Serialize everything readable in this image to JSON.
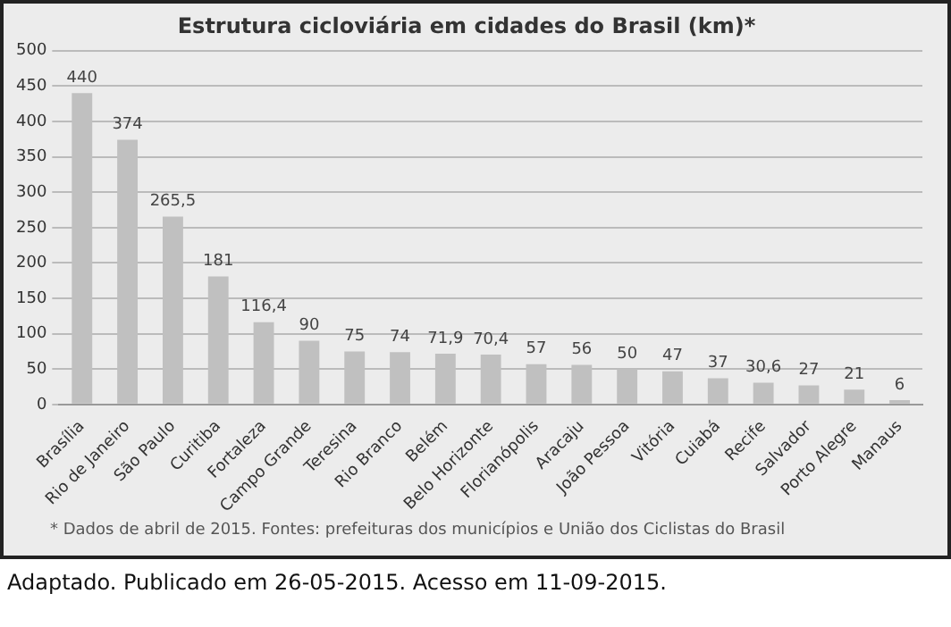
{
  "chart_data": {
    "type": "bar",
    "title": "Estrutura cicloviária em cidades do Brasil (km)*",
    "categories": [
      "Brasília",
      "Rio de Janeiro",
      "São Paulo",
      "Curitiba",
      "Fortaleza",
      "Campo Grande",
      "Teresina",
      "Rio Branco",
      "Belém",
      "Belo Horizonte",
      "Florianópolis",
      "Aracaju",
      "João Pessoa",
      "Vitória",
      "Cuiabá",
      "Recife",
      "Salvador",
      "Porto Alegre",
      "Manaus"
    ],
    "values": [
      440,
      374,
      265.5,
      181,
      116.4,
      90,
      75,
      74,
      71.9,
      70.4,
      57,
      56,
      50,
      47,
      37,
      30.6,
      27,
      21,
      6
    ],
    "value_labels": [
      "440",
      "374",
      "265,5",
      "181",
      "116,4",
      "90",
      "75",
      "74",
      "71,9",
      "70,4",
      "57",
      "56",
      "50",
      "47",
      "37",
      "30,6",
      "27",
      "21",
      "6"
    ],
    "color": "#c0c0c0",
    "ylim": [
      0,
      500
    ],
    "yticks": [
      0,
      50,
      100,
      150,
      200,
      250,
      300,
      350,
      400,
      450,
      500
    ],
    "grid": "y",
    "legend": false,
    "annotations": [
      "* Dados de abril de 2015. Fontes: prefeituras dos municípios e União dos Ciclistas do Brasil",
      "Adaptado. Publicado em 26-05-2015. Acesso em 11-09-2015."
    ]
  }
}
